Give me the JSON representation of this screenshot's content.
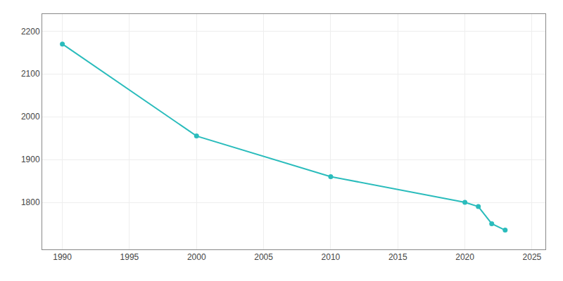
{
  "chart_data": {
    "type": "line",
    "x": [
      1990,
      2000,
      2010,
      2020,
      2021,
      2022,
      2023
    ],
    "values": [
      2170,
      1955,
      1860,
      1800,
      1790,
      1750,
      1735
    ],
    "color": "#2abcbc",
    "marker": "circle",
    "line_style": "solid",
    "xlim": [
      1988.5,
      2026
    ],
    "ylim": [
      1690,
      2240
    ],
    "xticks": [
      1990,
      1995,
      2000,
      2005,
      2010,
      2015,
      2020,
      2025
    ],
    "yticks": [
      1800,
      1900,
      2000,
      2100,
      2200
    ],
    "grid": true
  }
}
